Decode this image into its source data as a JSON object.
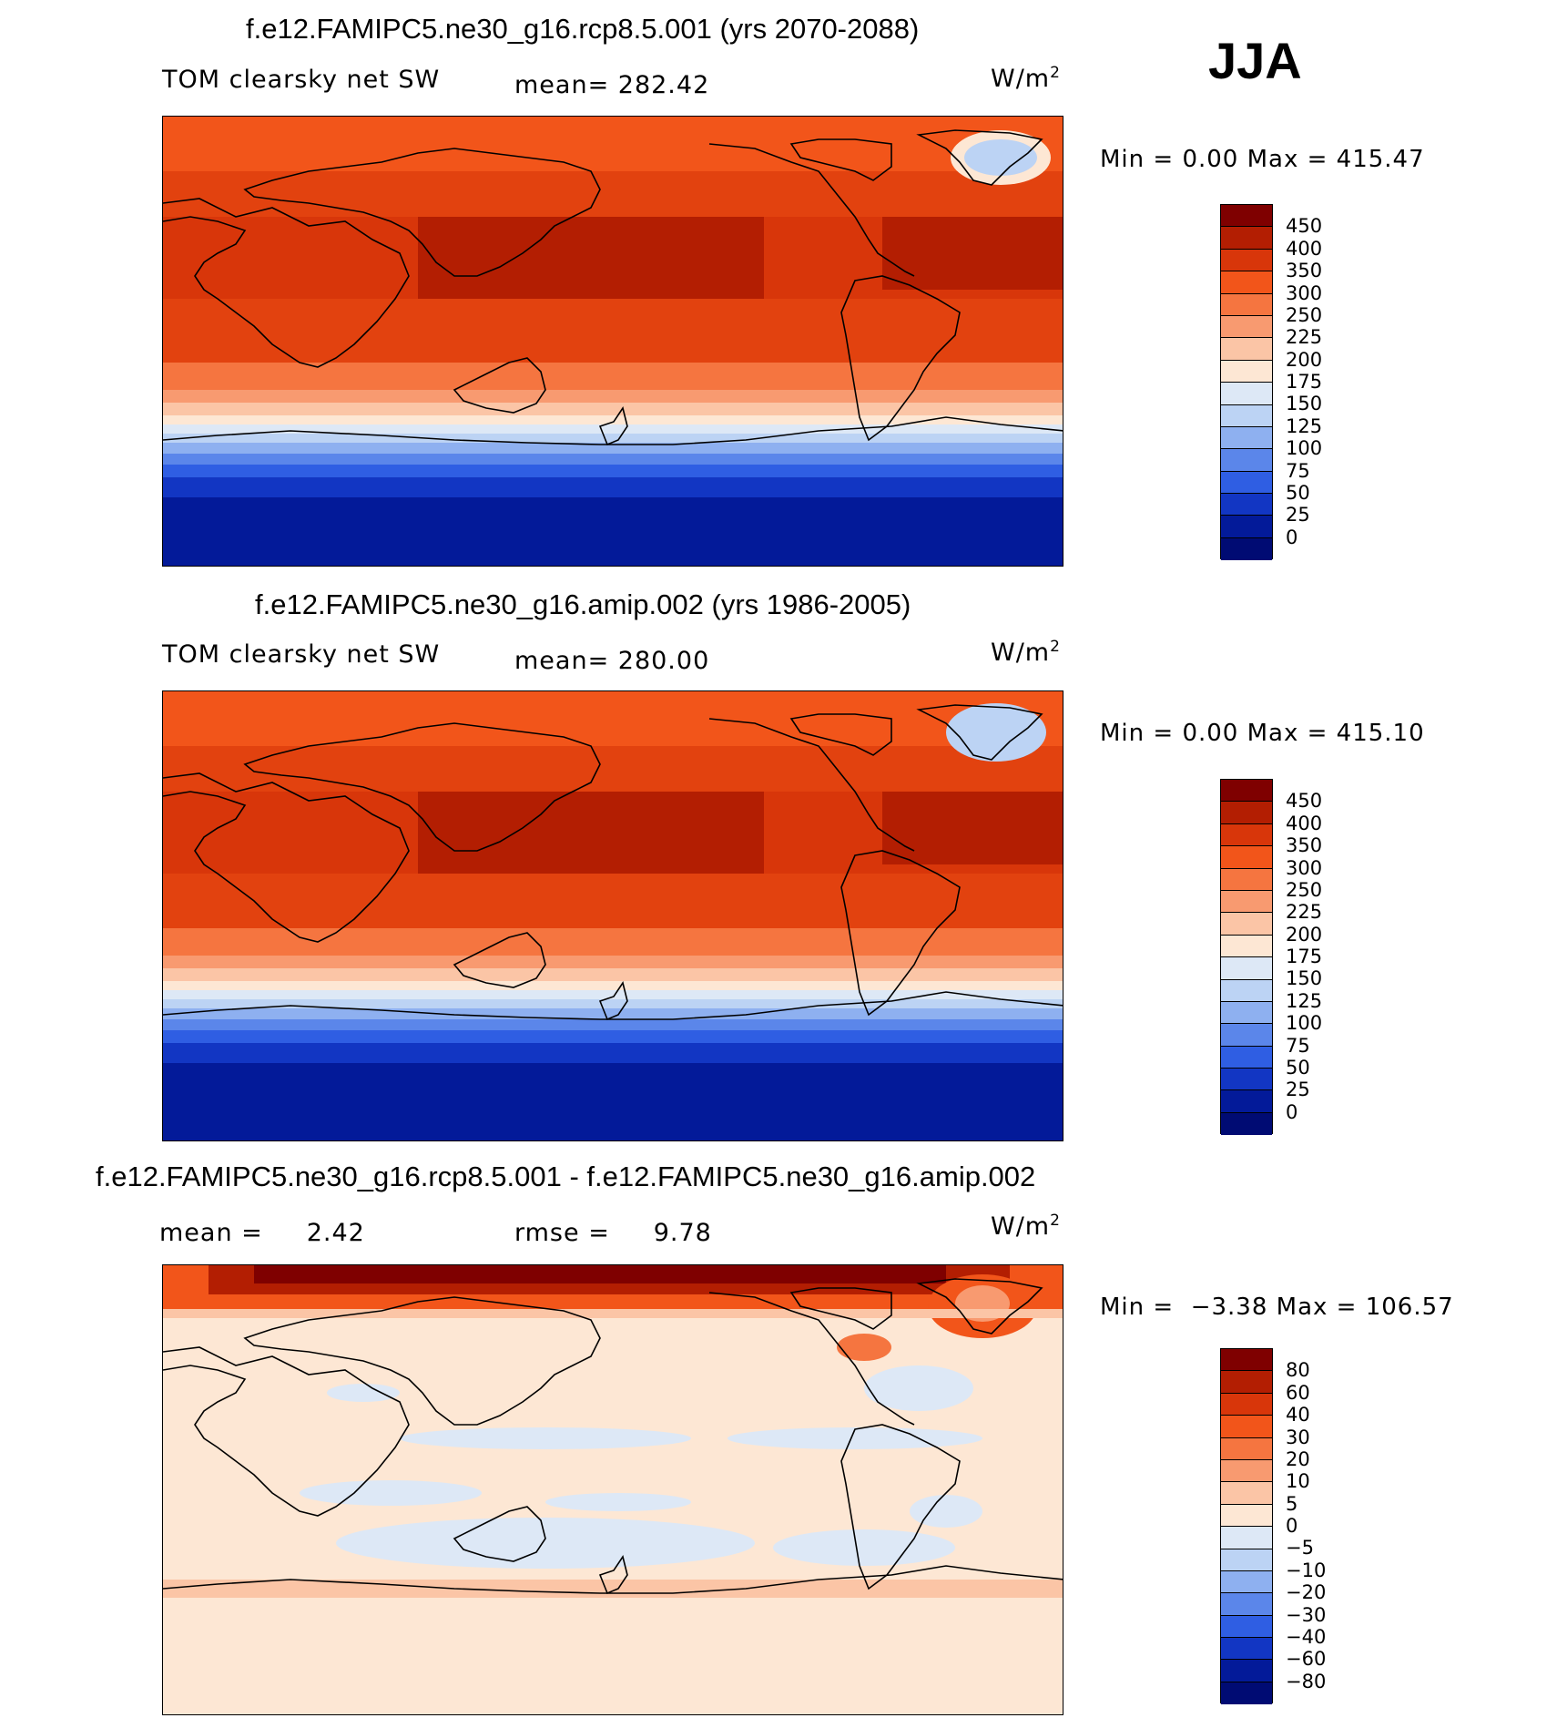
{
  "season": "JJA",
  "panels": [
    {
      "title": "f.e12.FAMIPC5.ne30_g16.rcp8.5.001 (yrs 2070-2088)",
      "left_label": "TOM clearsky net SW",
      "center_label": "mean= 282.42",
      "units": "W/m",
      "units_exp": "2",
      "minmax": "Min =    0.00 Max = 415.47",
      "colorbar": {
        "labels": [
          "450",
          "400",
          "350",
          "300",
          "250",
          "225",
          "200",
          "175",
          "150",
          "125",
          "100",
          "75",
          "50",
          "25",
          "0"
        ],
        "colors": [
          "#7f0000",
          "#b31e02",
          "#d8360a",
          "#f2551a",
          "#f57540",
          "#f89a70",
          "#fbc5a6",
          "#fde7d4",
          "#dde8f6",
          "#bcd3f4",
          "#8eb0f0",
          "#5b86ea",
          "#2f5ee3",
          "#1236c3",
          "#031a99",
          "#000b73"
        ]
      }
    },
    {
      "title": "f.e12.FAMIPC5.ne30_g16.amip.002 (yrs 1986-2005)",
      "left_label": "TOM clearsky net SW",
      "center_label": "mean= 280.00",
      "units": "W/m",
      "units_exp": "2",
      "minmax": "Min =    0.00 Max = 415.10",
      "colorbar": {
        "labels": [
          "450",
          "400",
          "350",
          "300",
          "250",
          "225",
          "200",
          "175",
          "150",
          "125",
          "100",
          "75",
          "50",
          "25",
          "0"
        ],
        "colors": [
          "#7f0000",
          "#b31e02",
          "#d8360a",
          "#f2551a",
          "#f57540",
          "#f89a70",
          "#fbc5a6",
          "#fde7d4",
          "#dde8f6",
          "#bcd3f4",
          "#8eb0f0",
          "#5b86ea",
          "#2f5ee3",
          "#1236c3",
          "#031a99",
          "#000b73"
        ]
      }
    },
    {
      "title": "f.e12.FAMIPC5.ne30_g16.rcp8.5.001 - f.e12.FAMIPC5.ne30_g16.amip.002",
      "left_label": "mean =     2.42",
      "center_label": "rmse =     9.78",
      "units": "W/m",
      "units_exp": "2",
      "minmax": "Min =  −3.38 Max = 106.57",
      "colorbar": {
        "labels": [
          "80",
          "60",
          "40",
          "30",
          "20",
          "10",
          "5",
          "0",
          "−5",
          "−10",
          "−20",
          "−30",
          "−40",
          "−60",
          "−80"
        ],
        "colors": [
          "#7f0000",
          "#b31e02",
          "#d8360a",
          "#f2551a",
          "#f57540",
          "#f89a70",
          "#fbc5a6",
          "#fde7d4",
          "#dde8f6",
          "#bcd3f4",
          "#8eb0f0",
          "#5b86ea",
          "#2f5ee3",
          "#1236c3",
          "#031a99",
          "#000b73"
        ]
      }
    }
  ]
}
